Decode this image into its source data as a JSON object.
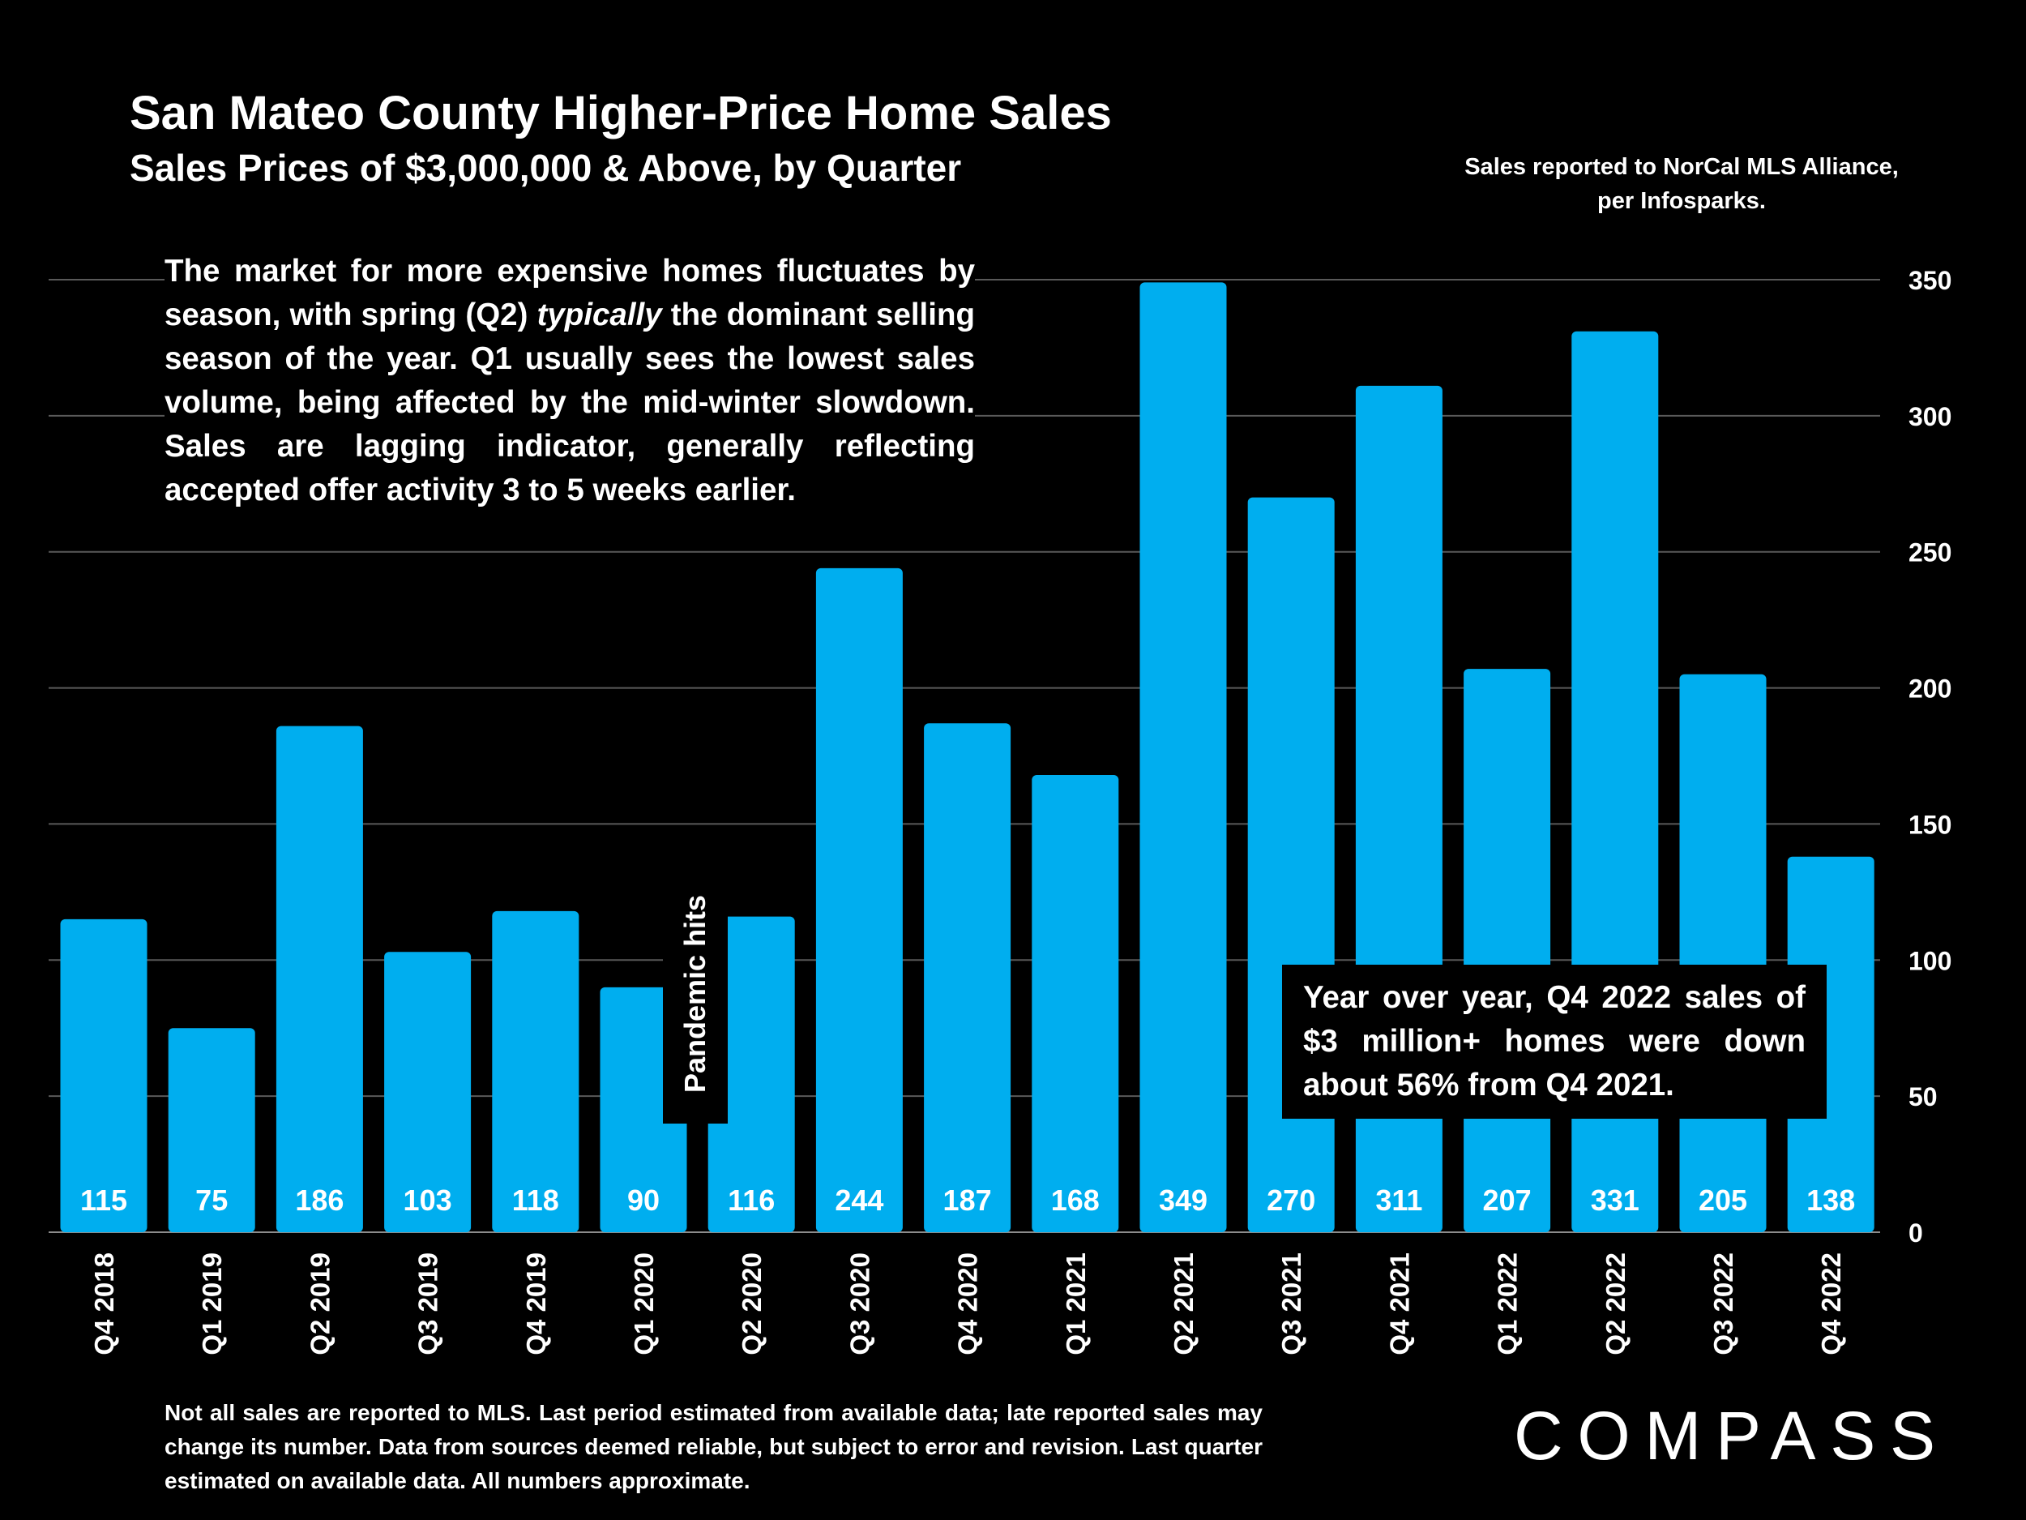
{
  "header": {
    "title": "San Mateo County Higher-Price Home Sales",
    "subtitle": "Sales Prices of $3,000,000 & Above, by Quarter",
    "source_note": "Sales reported to NorCal MLS Alliance, per Infosparks."
  },
  "annotations": {
    "intro_before": "The market for more expensive homes fluctuates by season, with spring (Q2) ",
    "intro_italic": "typically",
    "intro_after": " the dominant selling season of the year. Q1 usually sees the lowest sales volume, being affected by the mid-winter slowdown. Sales are lagging indicator, generally reflecting accepted offer activity 3 to 5 weeks earlier.",
    "pandemic": "Pandemic hits",
    "yoy": "Year over year, Q4 2022 sales of $3 million+ homes were down about 56% from Q4 2021."
  },
  "footer": {
    "note": "Not all sales are reported to MLS. Last period estimated from available data; late reported sales may change its number. Data from sources deemed reliable, but subject to error and revision. Last quarter estimated on available data. All numbers  approximate.",
    "logo": "COMPASS"
  },
  "colors": {
    "bar": "#00AEEF",
    "background": "#000000",
    "grid": "#595959",
    "text": "#FFFFFF"
  },
  "chart_data": {
    "type": "bar",
    "categories": [
      "Q4 2018",
      "Q1 2019",
      "Q2 2019",
      "Q3 2019",
      "Q4 2019",
      "Q1 2020",
      "Q2 2020",
      "Q3 2020",
      "Q4 2020",
      "Q1 2021",
      "Q2 2021",
      "Q3 2021",
      "Q4 2021",
      "Q1 2022",
      "Q2 2022",
      "Q3 2022",
      "Q4 2022"
    ],
    "values": [
      115,
      75,
      186,
      103,
      118,
      90,
      116,
      244,
      187,
      168,
      349,
      270,
      311,
      207,
      331,
      205,
      138
    ],
    "ylim": [
      0,
      350
    ],
    "yticks": [
      0,
      50,
      100,
      150,
      200,
      250,
      300,
      350
    ],
    "y_axis_side": "right",
    "grid": true,
    "data_labels": "inside-bottom"
  }
}
